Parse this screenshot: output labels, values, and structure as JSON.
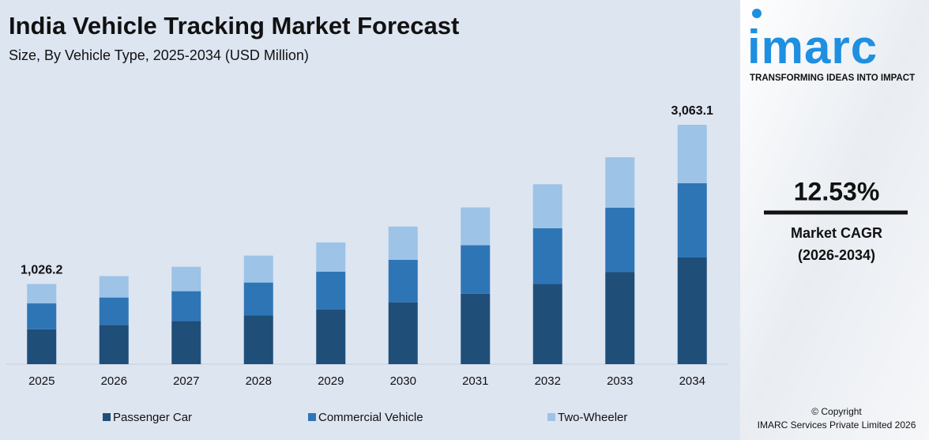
{
  "chart_data": {
    "type": "stacked-bar",
    "title": "India Vehicle Tracking Market Forecast",
    "subtitle": "Size, By Vehicle Type, 2025-2034 (USD Million)",
    "categories": [
      "2025",
      "2026",
      "2027",
      "2028",
      "2029",
      "2030",
      "2031",
      "2032",
      "2033",
      "2034"
    ],
    "series": [
      {
        "name": "Passenger Car",
        "color": "#1f4e79",
        "values": [
          447,
          503,
          552,
          622,
          698,
          792,
          902,
          1027,
          1178,
          1364.8
        ]
      },
      {
        "name": "Commercial Vehicle",
        "color": "#2e75b6",
        "values": [
          331,
          350,
          382,
          423,
          486,
          544,
          620,
          713,
          824,
          950.3
        ]
      },
      {
        "name": "Two-Wheeler",
        "color": "#9dc3e6",
        "values": [
          248.2,
          274,
          312,
          344,
          374,
          425,
          484,
          562,
          646,
          748
        ]
      }
    ],
    "totals": [
      1026.2,
      null,
      null,
      null,
      null,
      null,
      null,
      null,
      null,
      3063.1
    ],
    "total_labels": [
      "1,026.2",
      null,
      null,
      null,
      null,
      null,
      null,
      null,
      null,
      "3,063.1"
    ],
    "legend": "bottom"
  },
  "sidebar": {
    "logo": "imarc",
    "tagline": "TRANSFORMING IDEAS INTO IMPACT",
    "cagr": "12.53%",
    "cagr_label": "Market CAGR",
    "cagr_period": "(2026-2034)",
    "copyright": "© Copyright",
    "company": "IMARC Services Private Limited 2026"
  }
}
